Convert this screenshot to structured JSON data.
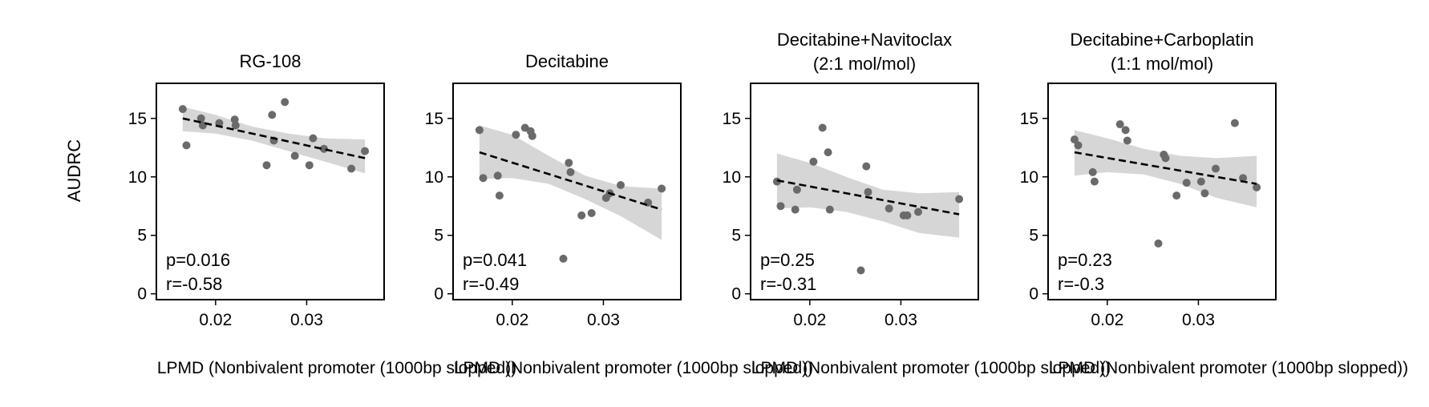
{
  "figure": {
    "ylabel": "AUDRC",
    "xlabel": "LPMD (Nonbivalent promoter (1000bp slopped))"
  },
  "chart_data": [
    {
      "type": "scatter",
      "title_lines": [
        "RG-108"
      ],
      "stat_lines": [
        "p=0.016",
        "r=-0.58"
      ],
      "xlim": [
        0.0135,
        0.0385
      ],
      "ylim": [
        -0.5,
        18
      ],
      "xticks": [
        0.02,
        0.03
      ],
      "xtick_labels": [
        "0.02",
        "0.03"
      ],
      "yticks": [
        0,
        5,
        10,
        15
      ],
      "ytick_labels": [
        "0",
        "5",
        "10",
        "15"
      ],
      "points": [
        [
          0.0164,
          15.8
        ],
        [
          0.0168,
          12.7
        ],
        [
          0.0184,
          15.0
        ],
        [
          0.0186,
          14.4
        ],
        [
          0.0204,
          14.6
        ],
        [
          0.0221,
          14.9
        ],
        [
          0.0222,
          14.4
        ],
        [
          0.0256,
          11.0
        ],
        [
          0.0262,
          15.3
        ],
        [
          0.0264,
          13.1
        ],
        [
          0.0276,
          16.4
        ],
        [
          0.0287,
          11.8
        ],
        [
          0.0303,
          11.0
        ],
        [
          0.0307,
          13.3
        ],
        [
          0.0319,
          12.4
        ],
        [
          0.0349,
          10.7
        ],
        [
          0.0364,
          12.2
        ]
      ],
      "fit": [
        [
          0.0164,
          15.0
        ],
        [
          0.0364,
          11.6
        ]
      ],
      "ci_upper": [
        [
          0.0164,
          16.0
        ],
        [
          0.02,
          15.3
        ],
        [
          0.024,
          14.3
        ],
        [
          0.028,
          13.7
        ],
        [
          0.032,
          13.3
        ],
        [
          0.0364,
          13.2
        ]
      ],
      "ci_lower": [
        [
          0.0164,
          13.9
        ],
        [
          0.02,
          13.7
        ],
        [
          0.024,
          13.1
        ],
        [
          0.028,
          12.2
        ],
        [
          0.032,
          11.3
        ],
        [
          0.0364,
          10.3
        ]
      ]
    },
    {
      "type": "scatter",
      "title_lines": [
        "Decitabine"
      ],
      "stat_lines": [
        "p=0.041",
        "r=-0.49"
      ],
      "xlim": [
        0.0135,
        0.0385
      ],
      "ylim": [
        -0.5,
        18
      ],
      "xticks": [
        0.02,
        0.03
      ],
      "xtick_labels": [
        "0.02",
        "0.03"
      ],
      "yticks": [
        0,
        5,
        10,
        15
      ],
      "ytick_labels": [
        "0",
        "5",
        "10",
        "15"
      ],
      "points": [
        [
          0.0164,
          14.0
        ],
        [
          0.0168,
          9.9
        ],
        [
          0.0184,
          10.1
        ],
        [
          0.0186,
          8.4
        ],
        [
          0.0204,
          13.6
        ],
        [
          0.0214,
          14.2
        ],
        [
          0.022,
          13.9
        ],
        [
          0.0222,
          13.5
        ],
        [
          0.0256,
          3.0
        ],
        [
          0.0262,
          11.2
        ],
        [
          0.0264,
          10.4
        ],
        [
          0.0276,
          6.7
        ],
        [
          0.0287,
          6.9
        ],
        [
          0.0303,
          8.2
        ],
        [
          0.0307,
          8.6
        ],
        [
          0.0319,
          9.3
        ],
        [
          0.0349,
          7.8
        ],
        [
          0.0364,
          9.0
        ]
      ],
      "fit": [
        [
          0.0164,
          12.1
        ],
        [
          0.0364,
          7.2
        ]
      ],
      "ci_upper": [
        [
          0.0164,
          14.4
        ],
        [
          0.02,
          13.6
        ],
        [
          0.024,
          11.8
        ],
        [
          0.028,
          10.1
        ],
        [
          0.032,
          9.2
        ],
        [
          0.0364,
          9.0
        ]
      ],
      "ci_lower": [
        [
          0.0164,
          9.8
        ],
        [
          0.02,
          9.9
        ],
        [
          0.024,
          9.4
        ],
        [
          0.028,
          8.1
        ],
        [
          0.032,
          6.6
        ],
        [
          0.0364,
          4.6
        ]
      ]
    },
    {
      "type": "scatter",
      "title_lines": [
        "Decitabine+Navitoclax",
        "(2:1 mol/mol)"
      ],
      "stat_lines": [
        "p=0.25",
        "r=-0.31"
      ],
      "xlim": [
        0.0135,
        0.0385
      ],
      "ylim": [
        -0.5,
        18
      ],
      "xticks": [
        0.02,
        0.03
      ],
      "xtick_labels": [
        "0.02",
        "0.03"
      ],
      "yticks": [
        0,
        5,
        10,
        15
      ],
      "ytick_labels": [
        "0",
        "5",
        "10",
        "15"
      ],
      "points": [
        [
          0.0164,
          9.6
        ],
        [
          0.0168,
          7.5
        ],
        [
          0.0184,
          7.2
        ],
        [
          0.0186,
          8.9
        ],
        [
          0.0204,
          11.3
        ],
        [
          0.0214,
          14.2
        ],
        [
          0.022,
          12.1
        ],
        [
          0.0222,
          7.2
        ],
        [
          0.0256,
          2.0
        ],
        [
          0.0262,
          10.9
        ],
        [
          0.0264,
          8.7
        ],
        [
          0.0287,
          7.3
        ],
        [
          0.0303,
          6.7
        ],
        [
          0.0307,
          6.7
        ],
        [
          0.0319,
          7.0
        ],
        [
          0.0364,
          8.1
        ]
      ],
      "fit": [
        [
          0.0164,
          9.7
        ],
        [
          0.0364,
          6.8
        ]
      ],
      "ci_upper": [
        [
          0.0164,
          12.0
        ],
        [
          0.02,
          11.2
        ],
        [
          0.024,
          10.0
        ],
        [
          0.028,
          8.9
        ],
        [
          0.032,
          8.6
        ],
        [
          0.0364,
          8.7
        ]
      ],
      "ci_lower": [
        [
          0.0164,
          7.3
        ],
        [
          0.02,
          7.4
        ],
        [
          0.024,
          7.0
        ],
        [
          0.028,
          6.2
        ],
        [
          0.032,
          5.2
        ],
        [
          0.0364,
          4.8
        ]
      ]
    },
    {
      "type": "scatter",
      "title_lines": [
        "Decitabine+Carboplatin",
        "(1:1 mol/mol)"
      ],
      "stat_lines": [
        "p=0.23",
        "r=-0.3"
      ],
      "xlim": [
        0.0135,
        0.0385
      ],
      "ylim": [
        -0.5,
        18
      ],
      "xticks": [
        0.02,
        0.03
      ],
      "xtick_labels": [
        "0.02",
        "0.03"
      ],
      "yticks": [
        0,
        5,
        10,
        15
      ],
      "ytick_labels": [
        "0",
        "5",
        "10",
        "15"
      ],
      "points": [
        [
          0.0164,
          13.2
        ],
        [
          0.0168,
          12.7
        ],
        [
          0.0184,
          10.4
        ],
        [
          0.0186,
          9.6
        ],
        [
          0.0214,
          14.5
        ],
        [
          0.022,
          14.0
        ],
        [
          0.0222,
          13.1
        ],
        [
          0.0256,
          4.3
        ],
        [
          0.0262,
          11.9
        ],
        [
          0.0264,
          11.6
        ],
        [
          0.0276,
          8.4
        ],
        [
          0.0287,
          9.5
        ],
        [
          0.0303,
          9.6
        ],
        [
          0.0307,
          8.6
        ],
        [
          0.0319,
          10.7
        ],
        [
          0.034,
          14.6
        ],
        [
          0.0349,
          9.9
        ],
        [
          0.0364,
          9.1
        ]
      ],
      "fit": [
        [
          0.0164,
          12.1
        ],
        [
          0.0364,
          9.4
        ]
      ],
      "ci_upper": [
        [
          0.0164,
          14.0
        ],
        [
          0.02,
          13.3
        ],
        [
          0.024,
          12.4
        ],
        [
          0.028,
          11.8
        ],
        [
          0.032,
          11.6
        ],
        [
          0.0364,
          11.8
        ]
      ],
      "ci_lower": [
        [
          0.0164,
          10.1
        ],
        [
          0.02,
          10.4
        ],
        [
          0.024,
          10.2
        ],
        [
          0.028,
          9.4
        ],
        [
          0.032,
          8.2
        ],
        [
          0.0364,
          7.4
        ]
      ]
    }
  ]
}
